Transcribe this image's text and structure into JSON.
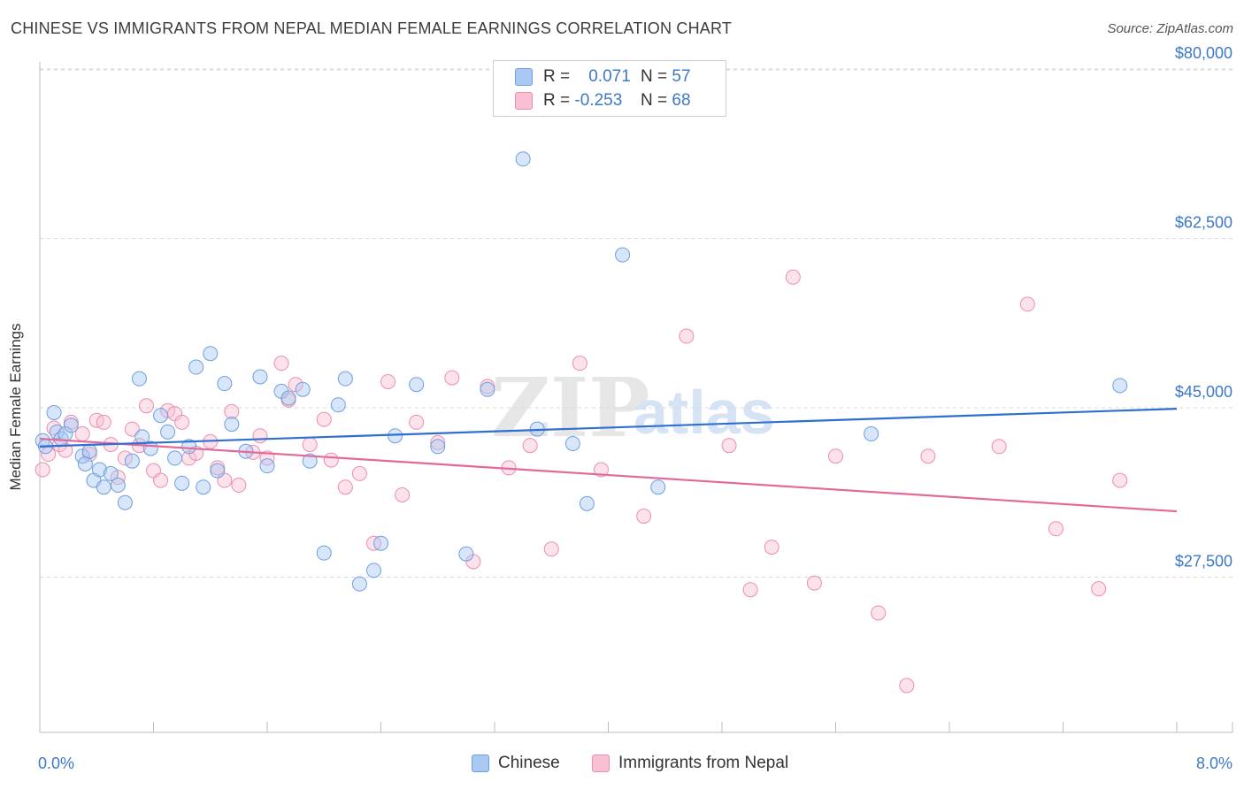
{
  "title": "CHINESE VS IMMIGRANTS FROM NEPAL MEDIAN FEMALE EARNINGS CORRELATION CHART",
  "source": "Source: ZipAtlas.com",
  "watermark": {
    "zip": "ZIP",
    "atlas": "atlas"
  },
  "legend": {
    "rows": [
      {
        "r_label": "R =",
        "r_value": "0.071",
        "n_label": "N =",
        "n_value": "57",
        "color": "#a9c8f2",
        "border": "#6d9fdf"
      },
      {
        "r_label": "R =",
        "r_value": "-0.253",
        "n_label": "N =",
        "n_value": "68",
        "color": "#f9bfd2",
        "border": "#ec8db0"
      }
    ]
  },
  "bottom_legend": [
    {
      "label": "Chinese",
      "color": "#a9c8f2",
      "border": "#6d9fdf"
    },
    {
      "label": "Immigrants from Nepal",
      "color": "#f9bfd2",
      "border": "#ec8db0"
    }
  ],
  "colors": {
    "blue_point_fill": "rgba(169,200,242,0.45)",
    "blue_point_stroke": "#6d9fdf",
    "blue_line": "#2f6fd0",
    "pink_point_fill": "rgba(249,191,210,0.45)",
    "pink_point_stroke": "#ec8db0",
    "pink_line": "#e4699a",
    "tick_label": "#3d78c8",
    "grid": "#d8d8d8"
  },
  "chart_data": {
    "type": "scatter",
    "title": "CHINESE VS IMMIGRANTS FROM NEPAL MEDIAN FEMALE EARNINGS CORRELATION CHART",
    "xlabel": "",
    "ylabel": "Median Female Earnings",
    "xlim": [
      0,
      8
    ],
    "ylim": [
      10000,
      85000
    ],
    "x_tick_labels": [
      "0.0%",
      "8.0%"
    ],
    "y_ticks": [
      27500,
      45000,
      62500,
      80000
    ],
    "y_tick_labels": [
      "$27,500",
      "$45,000",
      "$62,500",
      "$80,000"
    ],
    "grid": "horizontal dashed",
    "legend_position": "top-center",
    "series": [
      {
        "name": "Chinese",
        "r": 0.071,
        "n": 57,
        "trend": {
          "x": [
            0,
            8
          ],
          "y": [
            41000,
            44900
          ]
        },
        "points": [
          [
            0.02,
            41600
          ],
          [
            0.04,
            41000
          ],
          [
            0.1,
            44500
          ],
          [
            0.12,
            42500
          ],
          [
            0.15,
            41800
          ],
          [
            0.18,
            42300
          ],
          [
            0.22,
            43200
          ],
          [
            0.3,
            40000
          ],
          [
            0.32,
            39200
          ],
          [
            0.35,
            40500
          ],
          [
            0.38,
            37500
          ],
          [
            0.42,
            38600
          ],
          [
            0.45,
            36800
          ],
          [
            0.5,
            38200
          ],
          [
            0.55,
            37000
          ],
          [
            0.6,
            35200
          ],
          [
            0.65,
            39500
          ],
          [
            0.7,
            48000
          ],
          [
            0.72,
            42000
          ],
          [
            0.78,
            40800
          ],
          [
            0.85,
            44200
          ],
          [
            0.9,
            42500
          ],
          [
            0.95,
            39800
          ],
          [
            1.0,
            37200
          ],
          [
            1.05,
            41000
          ],
          [
            1.1,
            49200
          ],
          [
            1.15,
            36800
          ],
          [
            1.2,
            50600
          ],
          [
            1.25,
            38500
          ],
          [
            1.3,
            47500
          ],
          [
            1.35,
            43300
          ],
          [
            1.45,
            40500
          ],
          [
            1.55,
            48200
          ],
          [
            1.6,
            39000
          ],
          [
            1.7,
            46700
          ],
          [
            1.75,
            46000
          ],
          [
            1.85,
            46900
          ],
          [
            1.9,
            39500
          ],
          [
            2.0,
            30000
          ],
          [
            2.1,
            45300
          ],
          [
            2.15,
            48000
          ],
          [
            2.25,
            26800
          ],
          [
            2.35,
            28200
          ],
          [
            2.4,
            31000
          ],
          [
            2.5,
            42100
          ],
          [
            2.65,
            47400
          ],
          [
            2.8,
            41000
          ],
          [
            3.0,
            29900
          ],
          [
            3.15,
            46900
          ],
          [
            3.4,
            70700
          ],
          [
            3.5,
            42800
          ],
          [
            3.75,
            41300
          ],
          [
            3.85,
            35100
          ],
          [
            4.1,
            60800
          ],
          [
            4.35,
            36800
          ],
          [
            5.85,
            42300
          ],
          [
            7.6,
            47300
          ]
        ]
      },
      {
        "name": "Immigrants from Nepal",
        "r": -0.253,
        "n": 68,
        "trend": {
          "x": [
            0,
            8
          ],
          "y": [
            41800,
            34300
          ]
        },
        "points": [
          [
            0.02,
            38600
          ],
          [
            0.06,
            40200
          ],
          [
            0.1,
            42900
          ],
          [
            0.14,
            41200
          ],
          [
            0.18,
            40600
          ],
          [
            0.22,
            43500
          ],
          [
            0.3,
            42300
          ],
          [
            0.35,
            40200
          ],
          [
            0.4,
            43700
          ],
          [
            0.45,
            43500
          ],
          [
            0.5,
            41200
          ],
          [
            0.55,
            37800
          ],
          [
            0.6,
            39800
          ],
          [
            0.65,
            42800
          ],
          [
            0.7,
            41100
          ],
          [
            0.75,
            45200
          ],
          [
            0.8,
            38500
          ],
          [
            0.85,
            37500
          ],
          [
            0.9,
            44700
          ],
          [
            0.95,
            44400
          ],
          [
            1.0,
            43500
          ],
          [
            1.05,
            39800
          ],
          [
            1.1,
            40300
          ],
          [
            1.2,
            41500
          ],
          [
            1.25,
            38800
          ],
          [
            1.3,
            37500
          ],
          [
            1.35,
            44600
          ],
          [
            1.4,
            37000
          ],
          [
            1.5,
            40400
          ],
          [
            1.55,
            42100
          ],
          [
            1.6,
            39800
          ],
          [
            1.7,
            49600
          ],
          [
            1.75,
            45800
          ],
          [
            1.8,
            47400
          ],
          [
            1.9,
            41200
          ],
          [
            2.0,
            43800
          ],
          [
            2.05,
            39600
          ],
          [
            2.15,
            36800
          ],
          [
            2.25,
            38200
          ],
          [
            2.35,
            31000
          ],
          [
            2.45,
            47700
          ],
          [
            2.55,
            36000
          ],
          [
            2.65,
            43500
          ],
          [
            2.8,
            41400
          ],
          [
            2.9,
            48100
          ],
          [
            3.05,
            29100
          ],
          [
            3.15,
            47200
          ],
          [
            3.3,
            38800
          ],
          [
            3.45,
            41100
          ],
          [
            3.6,
            30400
          ],
          [
            3.8,
            49600
          ],
          [
            3.95,
            38600
          ],
          [
            4.25,
            33800
          ],
          [
            4.55,
            52400
          ],
          [
            4.85,
            41100
          ],
          [
            5.0,
            26200
          ],
          [
            5.15,
            30600
          ],
          [
            5.3,
            58500
          ],
          [
            5.45,
            26900
          ],
          [
            5.6,
            40000
          ],
          [
            5.9,
            23800
          ],
          [
            6.1,
            16300
          ],
          [
            6.25,
            40000
          ],
          [
            6.75,
            41000
          ],
          [
            6.95,
            55700
          ],
          [
            7.15,
            32500
          ],
          [
            7.45,
            26300
          ],
          [
            7.6,
            37500
          ]
        ]
      }
    ]
  },
  "y_axis_label": "Median Female Earnings"
}
